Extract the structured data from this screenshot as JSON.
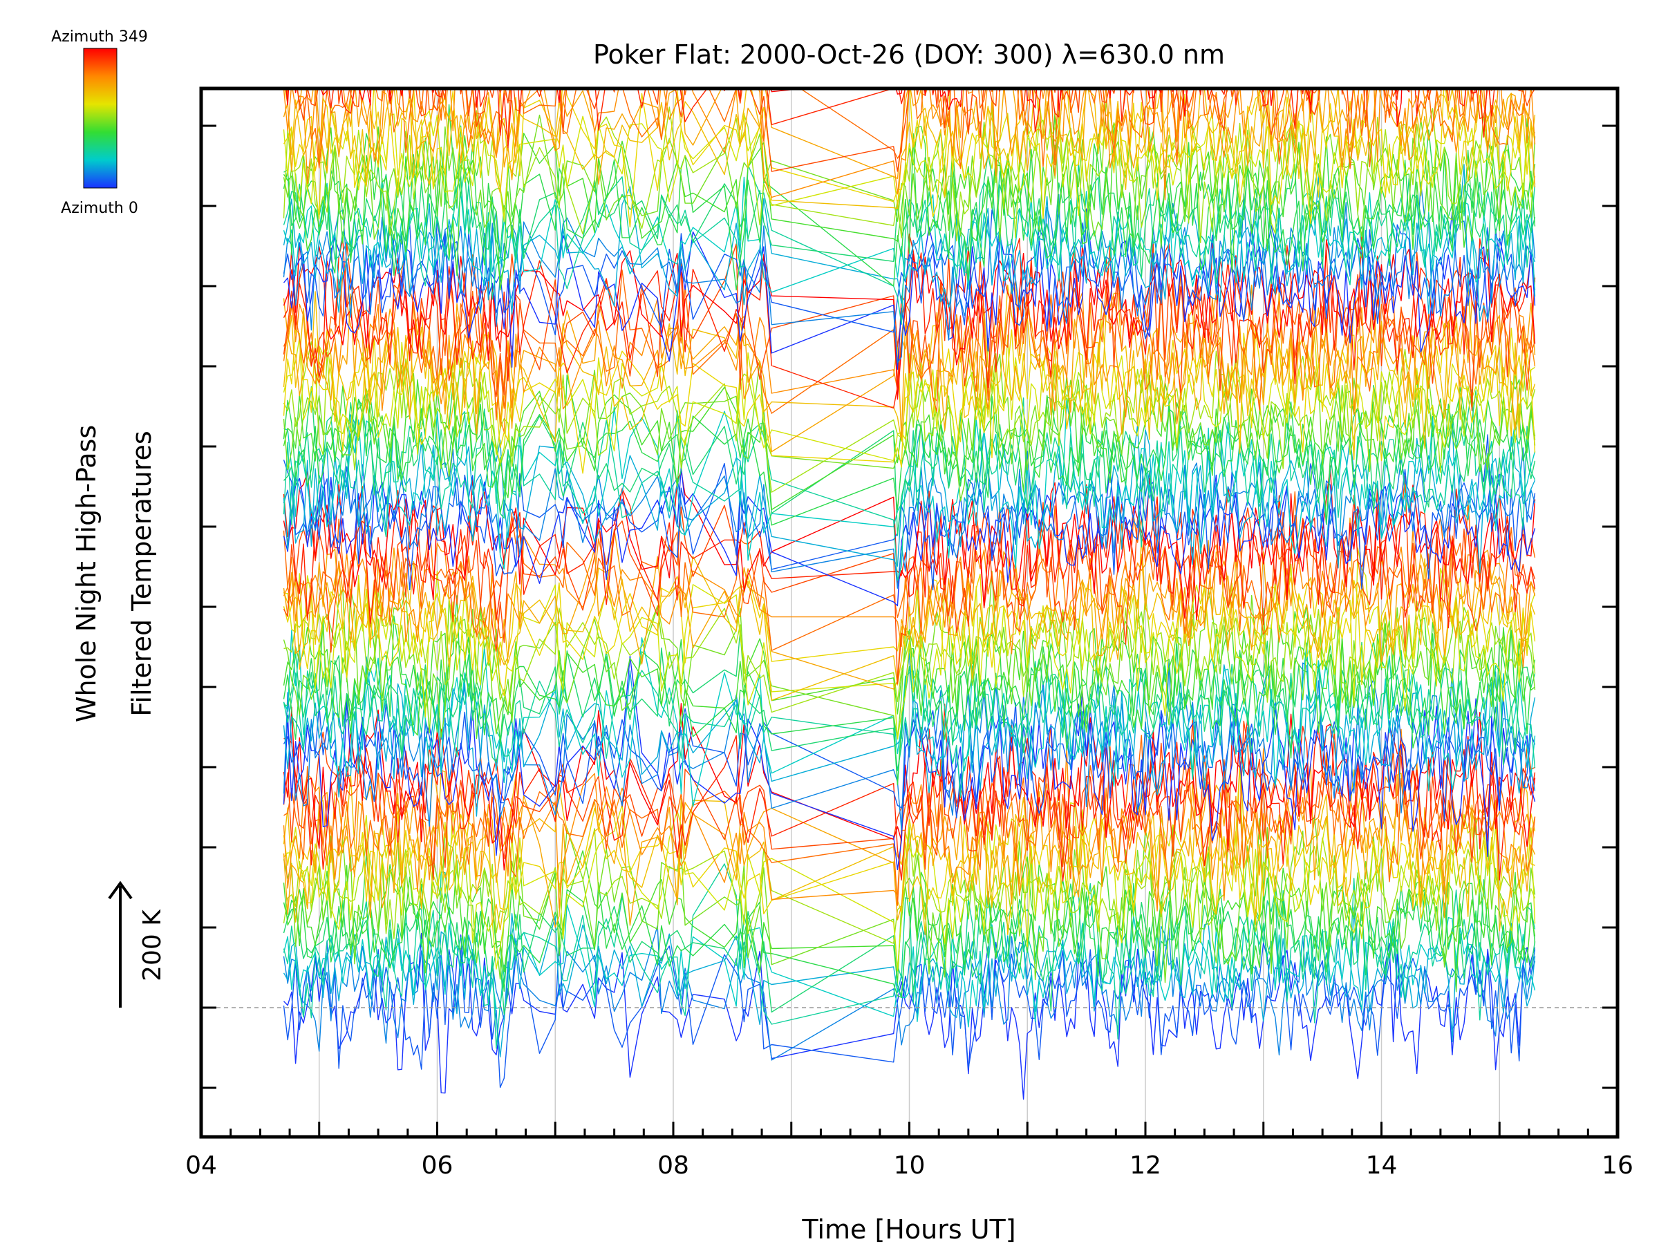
{
  "chart_data": {
    "type": "line",
    "title": "Poker Flat: 2000-Oct-26 (DOY: 300) λ=630.0 nm",
    "xlabel": "Time [Hours UT]",
    "ylabel_line1": "Whole Night High-Pass",
    "ylabel_line2": "Filtered Temperatures",
    "xlim": [
      4,
      16
    ],
    "x_ticks": [
      {
        "value": 4,
        "label": "04"
      },
      {
        "value": 6,
        "label": "06"
      },
      {
        "value": 8,
        "label": "08"
      },
      {
        "value": 10,
        "label": "10"
      },
      {
        "value": 12,
        "label": "12"
      },
      {
        "value": 14,
        "label": "14"
      },
      {
        "value": 16,
        "label": "16"
      }
    ],
    "x_minor_step": 0.25,
    "grid": "vertical lines every 1 hour (light grey)",
    "data_start_hour": 4.7,
    "data_end_hour": 15.3,
    "data_gap_hours": [
      [
        8.85,
        9.85
      ]
    ],
    "scale_bar": {
      "label": "200 K",
      "kelvin": 200
    },
    "baseline": "dashed horizontal line at zero offset",
    "colorbar": {
      "top_label": "Azimuth 349",
      "bottom_label": "Azimuth 0",
      "colors": [
        "#ff0000",
        "#ff8800",
        "#e5e500",
        "#33dd33",
        "#00cccc",
        "#1a33ff"
      ]
    },
    "series_count": 80,
    "series_offset_kelvin": 50,
    "colors": {
      "background": "#ffffff",
      "axes": "#000000",
      "grid": "#cccccc",
      "baseline": "#999999"
    }
  }
}
